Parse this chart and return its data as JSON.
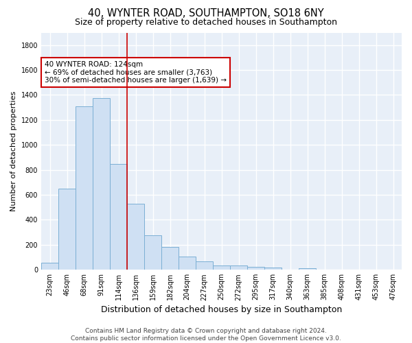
{
  "title_line1": "40, WYNTER ROAD, SOUTHAMPTON, SO18 6NY",
  "title_line2": "Size of property relative to detached houses in Southampton",
  "xlabel": "Distribution of detached houses by size in Southampton",
  "ylabel": "Number of detached properties",
  "bar_labels": [
    "23sqm",
    "46sqm",
    "68sqm",
    "91sqm",
    "114sqm",
    "136sqm",
    "159sqm",
    "182sqm",
    "204sqm",
    "227sqm",
    "250sqm",
    "272sqm",
    "295sqm",
    "317sqm",
    "340sqm",
    "363sqm",
    "385sqm",
    "408sqm",
    "431sqm",
    "453sqm",
    "476sqm"
  ],
  "bar_values": [
    55,
    648,
    1310,
    1375,
    848,
    530,
    275,
    185,
    105,
    65,
    35,
    35,
    25,
    15,
    0,
    12,
    0,
    0,
    0,
    0,
    0
  ],
  "bar_color": "#cfe0f3",
  "bar_edge_color": "#7bafd4",
  "vline_x": 4.5,
  "vline_color": "#cc0000",
  "annotation_text": "40 WYNTER ROAD: 124sqm\n← 69% of detached houses are smaller (3,763)\n30% of semi-detached houses are larger (1,639) →",
  "annotation_box_color": "white",
  "annotation_box_edge_color": "#cc0000",
  "ylim": [
    0,
    1900
  ],
  "yticks": [
    0,
    200,
    400,
    600,
    800,
    1000,
    1200,
    1400,
    1600,
    1800
  ],
  "background_color": "#e8eff8",
  "grid_color": "white",
  "footnote": "Contains HM Land Registry data © Crown copyright and database right 2024.\nContains public sector information licensed under the Open Government Licence v3.0.",
  "title_fontsize": 10.5,
  "subtitle_fontsize": 9,
  "xlabel_fontsize": 9,
  "ylabel_fontsize": 8,
  "tick_fontsize": 7,
  "annot_fontsize": 7.5,
  "footnote_fontsize": 6.5
}
